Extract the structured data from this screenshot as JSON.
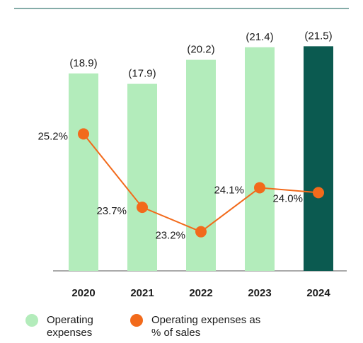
{
  "chart_data": {
    "type": "bar",
    "categories": [
      "2020",
      "2021",
      "2022",
      "2023",
      "2024"
    ],
    "series": [
      {
        "name": "Operating expenses",
        "type": "bar",
        "color": "#b3ecbb",
        "colors": [
          "#b3ecbb",
          "#b3ecbb",
          "#b3ecbb",
          "#b3ecbb",
          "#0b5a50"
        ],
        "values": [
          18.9,
          17.9,
          20.2,
          21.4,
          21.5
        ],
        "value_labels": [
          "(18.9)",
          "(17.9)",
          "(20.2)",
          "(21.4)",
          "(21.5)"
        ]
      },
      {
        "name": "Operating expenses as % of sales",
        "type": "line",
        "axis": "y2",
        "color": "#f26a1b",
        "values": [
          25.2,
          23.7,
          23.2,
          24.1,
          24.0
        ],
        "value_labels": [
          "25.2%",
          "23.7%",
          "23.2%",
          "24.1%",
          "24.0%"
        ]
      }
    ],
    "ylim": [
      0,
      22
    ],
    "y2lim": [
      22.4,
      27.1
    ]
  }
}
